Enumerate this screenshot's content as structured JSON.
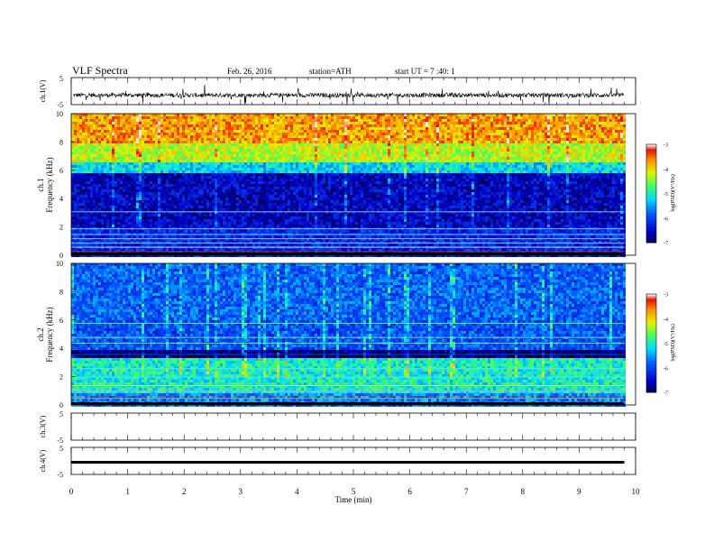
{
  "header": {
    "title": "VLF  Spectra",
    "date": "Feb. 26, 2016",
    "station": "station=ATH",
    "start_ut": "start  UT  =   7  :40: 1"
  },
  "chart_data": [
    {
      "type": "line",
      "id": "ch1-waveform",
      "ylabel": "ch.1(V)",
      "yticks": [
        "5",
        "-5"
      ],
      "ylim": [
        -5,
        5
      ],
      "xlim": [
        0,
        10
      ],
      "trace_level_approx": -1.5,
      "trace_color": "#000000"
    },
    {
      "type": "heatmap",
      "id": "ch1-spectrogram",
      "ylabel_channel": "ch.1",
      "ylabel": "Frequency  (kHz)",
      "ylim": [
        0,
        10
      ],
      "yticks": [
        "0",
        "2",
        "4",
        "6",
        "8",
        "10"
      ],
      "xlim": [
        0,
        9.8
      ],
      "colorbar": {
        "label": "log(PSD)(V²/Hz)",
        "ticks": [
          "-3",
          "-4",
          "-5",
          "-6",
          "-7"
        ],
        "range": [
          -7,
          -3
        ]
      },
      "profile_description": "high PSD (red/yellow) above ~6 kHz, low (dark blue) 2-6 kHz, horizontal lines below 2 kHz"
    },
    {
      "type": "heatmap",
      "id": "ch2-spectrogram",
      "ylabel_channel": "ch.2",
      "ylabel": "Frequency  (kHz)",
      "ylim": [
        0,
        10
      ],
      "yticks": [
        "0",
        "2",
        "4",
        "6",
        "8",
        "10"
      ],
      "xlim": [
        0,
        9.8
      ],
      "colorbar": {
        "label": "log(PSD)(V²/Hz)",
        "ticks": [
          "-3",
          "-4",
          "-5",
          "-6",
          "-7"
        ],
        "range": [
          -7,
          -3
        ]
      },
      "profile_description": "mostly blue/cyan with many narrow-band horizontal lines, green band near 1-3 kHz"
    },
    {
      "type": "line",
      "id": "ch3-waveform",
      "ylabel": "ch.3(V)",
      "yticks": [
        "5",
        "-5"
      ],
      "ylim": [
        -5,
        5
      ],
      "xlim": [
        0,
        10
      ],
      "trace": "none"
    },
    {
      "type": "line",
      "id": "ch4-waveform",
      "ylabel": "ch.4(V)",
      "yticks": [
        "5",
        "-5"
      ],
      "ylim": [
        -5,
        5
      ],
      "xlim": [
        0,
        9.8
      ],
      "trace_level_approx": -0.5,
      "trace_color": "#000000"
    }
  ],
  "xaxis": {
    "label": "Time  (min)",
    "ticks": [
      "0",
      "1",
      "2",
      "3",
      "4",
      "5",
      "6",
      "7",
      "8",
      "9",
      "10"
    ],
    "range": [
      0,
      10
    ]
  }
}
